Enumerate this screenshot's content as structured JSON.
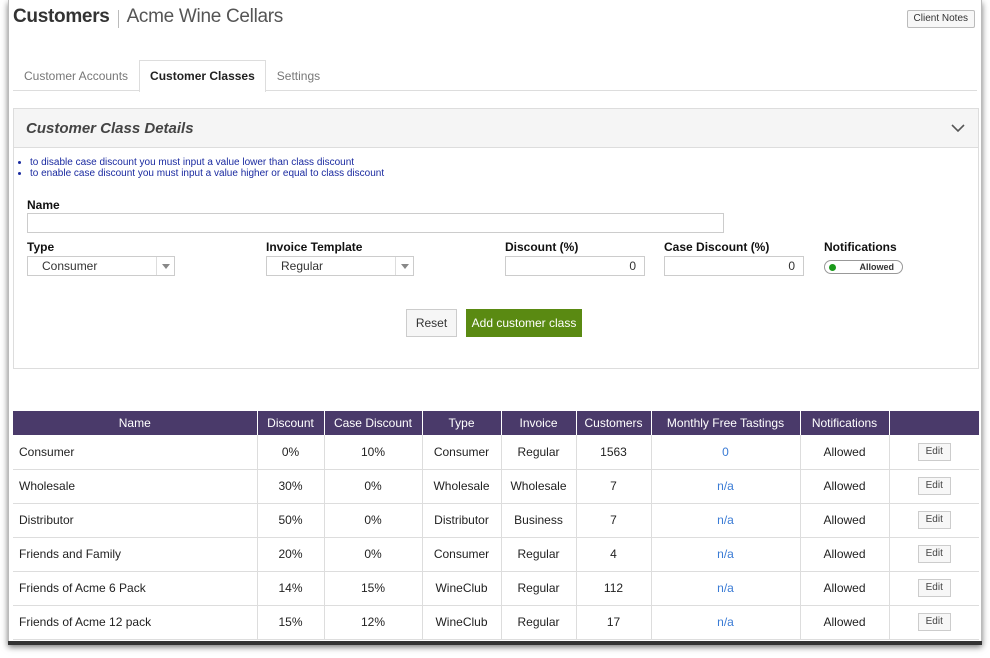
{
  "header": {
    "title": "Customers",
    "company": "Acme Wine Cellars",
    "client_notes": "Client Notes"
  },
  "tabs": [
    {
      "label": "Customer Accounts"
    },
    {
      "label": "Customer Classes",
      "active": true
    },
    {
      "label": "Settings"
    }
  ],
  "details": {
    "title": "Customer Class Details",
    "notes": [
      "to disable case discount you must input a value lower than class discount",
      "to enable case discount you must input a value higher or equal to class discount"
    ],
    "name_label": "Name",
    "name_value": "",
    "type_label": "Type",
    "type_value": "Consumer",
    "invoice_label": "Invoice Template",
    "invoice_value": "Regular",
    "discount_label": "Discount (%)",
    "discount_value": "0",
    "case_discount_label": "Case Discount (%)",
    "case_discount_value": "0",
    "notifications_label": "Notifications",
    "notifications_value": "Allowed",
    "reset": "Reset",
    "add": "Add customer class"
  },
  "table": {
    "columns": [
      "Name",
      "Discount",
      "Case Discount",
      "Type",
      "Invoice",
      "Customers",
      "Monthly Free Tastings",
      "Notifications",
      ""
    ],
    "edit_label": "Edit",
    "rows": [
      [
        "Consumer",
        "0%",
        "10%",
        "Consumer",
        "Regular",
        "1563",
        "0",
        "Allowed"
      ],
      [
        "Wholesale",
        "30%",
        "0%",
        "Wholesale",
        "Wholesale",
        "7",
        "n/a",
        "Allowed"
      ],
      [
        "Distributor",
        "50%",
        "0%",
        "Distributor",
        "Business",
        "7",
        "n/a",
        "Allowed"
      ],
      [
        "Friends and Family",
        "20%",
        "0%",
        "Consumer",
        "Regular",
        "4",
        "n/a",
        "Allowed"
      ],
      [
        "Friends of Acme 6 Pack",
        "14%",
        "15%",
        "WineClub",
        "Regular",
        "112",
        "n/a",
        "Allowed"
      ],
      [
        "Friends of Acme 12 pack",
        "15%",
        "12%",
        "WineClub",
        "Regular",
        "17",
        "n/a",
        "Allowed"
      ]
    ]
  },
  "colors": {
    "table_header": "#4a3a6a",
    "primary_button": "#5a8a12",
    "link": "#3a7bd5",
    "toggle_dot": "#1a9a1a"
  }
}
